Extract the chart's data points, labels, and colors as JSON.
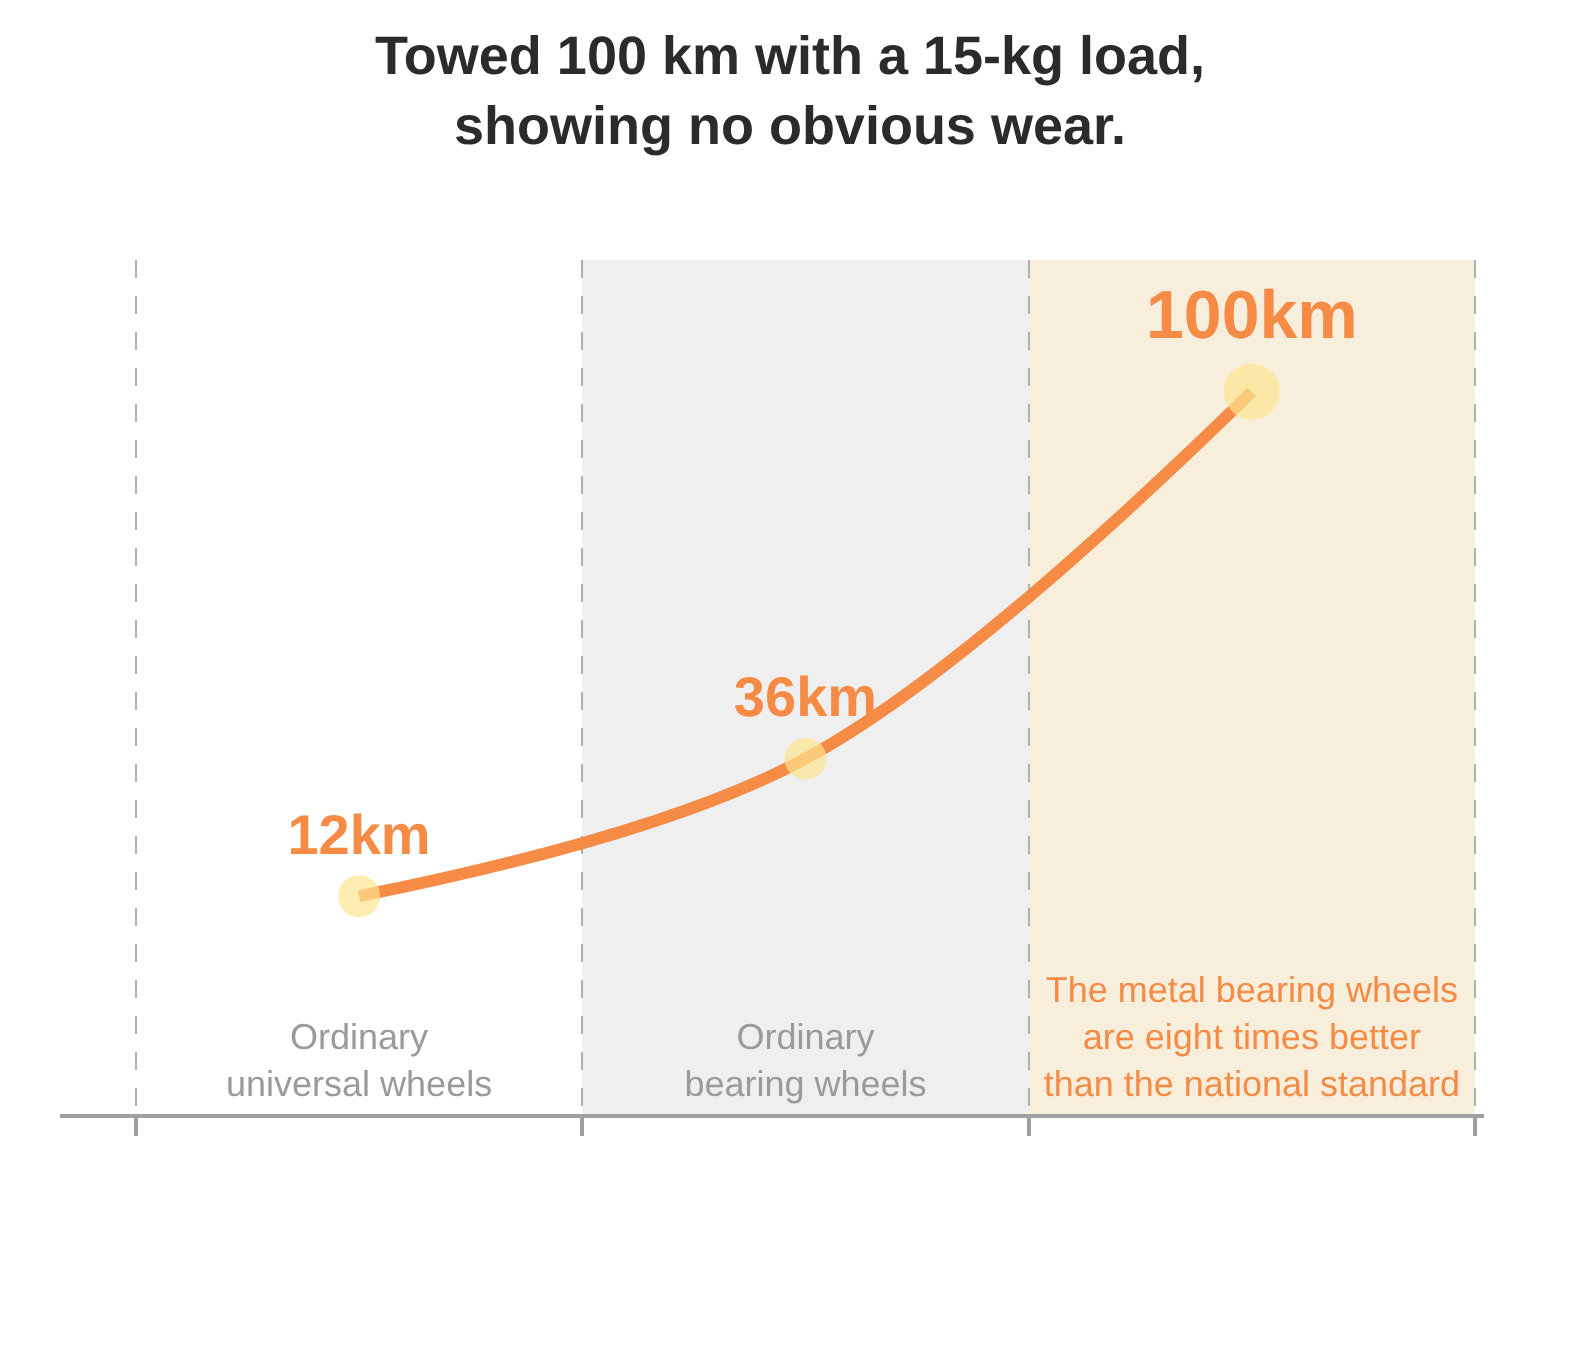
{
  "chart_data": {
    "type": "line",
    "title": "Towed 100 km with a 15-kg load,\nshowing no obvious wear.",
    "categories": [
      "Ordinary\nuniversal wheels",
      "Ordinary\nbearing wheels",
      "The metal bearing wheels\nare eight times better\nthan the national standard"
    ],
    "series": [
      {
        "color": "#f58b45",
        "colors": [
          "#fde68f",
          "#fde68f",
          "#fde68f"
        ],
        "values": [
          12,
          36,
          100
        ],
        "value_labels": [
          "12km",
          "36km",
          "100km"
        ]
      }
    ],
    "marker": "circle",
    "line_style": "solid",
    "grid": "x",
    "tick_labels": "x",
    "bands": [
      {
        "axis": "x",
        "from": "Ordinary\nbearing wheels",
        "to": "Ordinary\nbearing wheels",
        "color": "#efefef"
      },
      {
        "axis": "x",
        "from": "The metal bearing wheels\nare eight times better\nthan the national standard",
        "to": "The metal bearing wheels\nare eight times better\nthan the national standard",
        "color": "#f7eedc"
      }
    ]
  }
}
